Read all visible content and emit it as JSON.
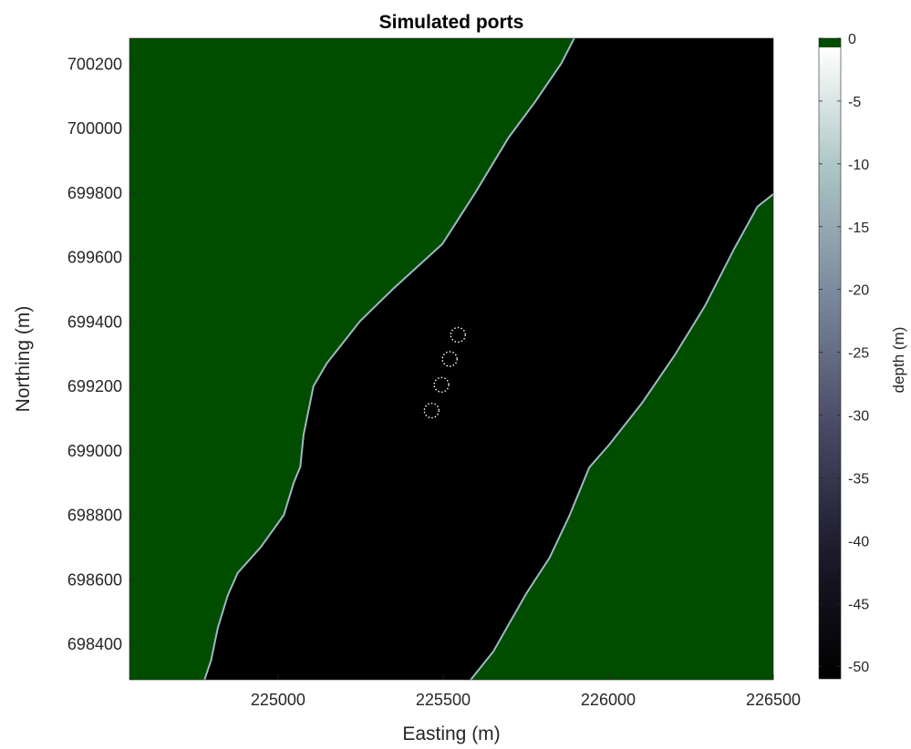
{
  "chart_data": {
    "type": "heatmap",
    "title": "Simulated ports",
    "xlabel": "Easting (m)",
    "ylabel": "Northing (m)",
    "xlim": [
      224550,
      226500
    ],
    "ylim": [
      698290,
      700280
    ],
    "x_ticks": [
      225000,
      225500,
      226000,
      226500
    ],
    "y_ticks": [
      698400,
      698600,
      698800,
      699000,
      699200,
      699400,
      699600,
      699800,
      700000,
      700200
    ],
    "x_tick_labels": [
      "225000",
      "225500",
      "226000",
      "226500"
    ],
    "y_tick_labels": [
      "698400",
      "698600",
      "698800",
      "699000",
      "699200",
      "699400",
      "699600",
      "699800",
      "700000",
      "700200"
    ],
    "grid": false,
    "land_color": "#004d00",
    "deep_color": "#000000",
    "colorbar": {
      "label": "depth (m)",
      "range": [
        -51,
        0
      ],
      "ticks": [
        0,
        -5,
        -10,
        -15,
        -20,
        -25,
        -30,
        -35,
        -40,
        -45,
        -50
      ],
      "tick_labels": [
        "0",
        "-5",
        "-10",
        "-15",
        "-20",
        "-25",
        "-30",
        "-35",
        "-40",
        "-45",
        "-50"
      ],
      "land_swatch_color": "#004d00",
      "gradient_stops": [
        "#000000",
        "#1b1b2b",
        "#4a4a66",
        "#78869a",
        "#a9c2c2",
        "#ffffff"
      ]
    },
    "channel_west_bank": [
      [
        224780,
        698290
      ],
      [
        224800,
        698350
      ],
      [
        224820,
        698450
      ],
      [
        224850,
        698550
      ],
      [
        224880,
        698620
      ],
      [
        224950,
        698700
      ],
      [
        225020,
        698800
      ],
      [
        225050,
        698900
      ],
      [
        225070,
        698950
      ],
      [
        225080,
        699050
      ],
      [
        225110,
        699200
      ],
      [
        225150,
        699270
      ],
      [
        225250,
        699400
      ],
      [
        225350,
        699500
      ],
      [
        225500,
        699640
      ],
      [
        225600,
        699800
      ],
      [
        225700,
        699970
      ],
      [
        225780,
        700080
      ],
      [
        225860,
        700200
      ],
      [
        225900,
        700280
      ]
    ],
    "channel_east_bank": [
      [
        225580,
        698290
      ],
      [
        225650,
        698380
      ],
      [
        225700,
        698470
      ],
      [
        225750,
        698560
      ],
      [
        225820,
        698670
      ],
      [
        225880,
        698800
      ],
      [
        225940,
        698950
      ],
      [
        226000,
        699020
      ],
      [
        226100,
        699150
      ],
      [
        226200,
        699300
      ],
      [
        226290,
        699450
      ],
      [
        226380,
        699630
      ],
      [
        226450,
        699760
      ],
      [
        226500,
        699800
      ]
    ],
    "ports": [
      {
        "x": 225545,
        "y": 699360
      },
      {
        "x": 225520,
        "y": 699285
      },
      {
        "x": 225495,
        "y": 699205
      },
      {
        "x": 225465,
        "y": 699125
      }
    ]
  }
}
